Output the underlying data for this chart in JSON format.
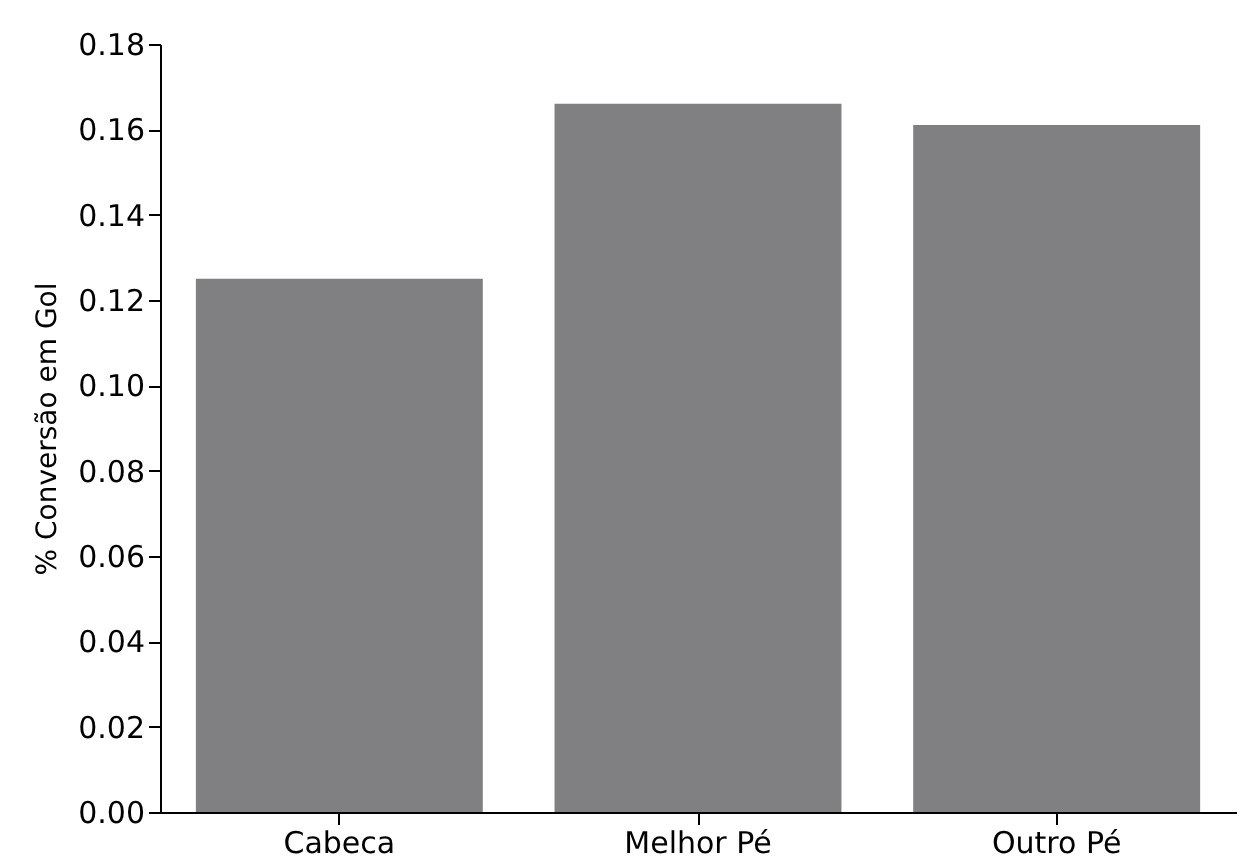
{
  "chart_data": {
    "type": "bar",
    "ylabel": "% Conversão em Gol",
    "categories": [
      "Cabeca",
      "Melhor Pé",
      "Outro Pé"
    ],
    "values": [
      0.125,
      0.166,
      0.161
    ],
    "color": "#808083",
    "ylim": [
      0,
      0.18
    ],
    "yticks": [
      {
        "value": 0,
        "label": "0.00"
      },
      {
        "value": 0.02,
        "label": "0.02"
      },
      {
        "value": 0.04,
        "label": "0.04"
      },
      {
        "value": 0.06,
        "label": "0.06"
      },
      {
        "value": 0.08,
        "label": "0.08"
      },
      {
        "value": 0.1,
        "label": "0.10"
      },
      {
        "value": 0.12,
        "label": "0.12"
      },
      {
        "value": 0.14,
        "label": "0.14"
      },
      {
        "value": 0.16,
        "label": "0.16"
      },
      {
        "value": 0.18,
        "label": "0.18"
      }
    ],
    "grid": false
  }
}
